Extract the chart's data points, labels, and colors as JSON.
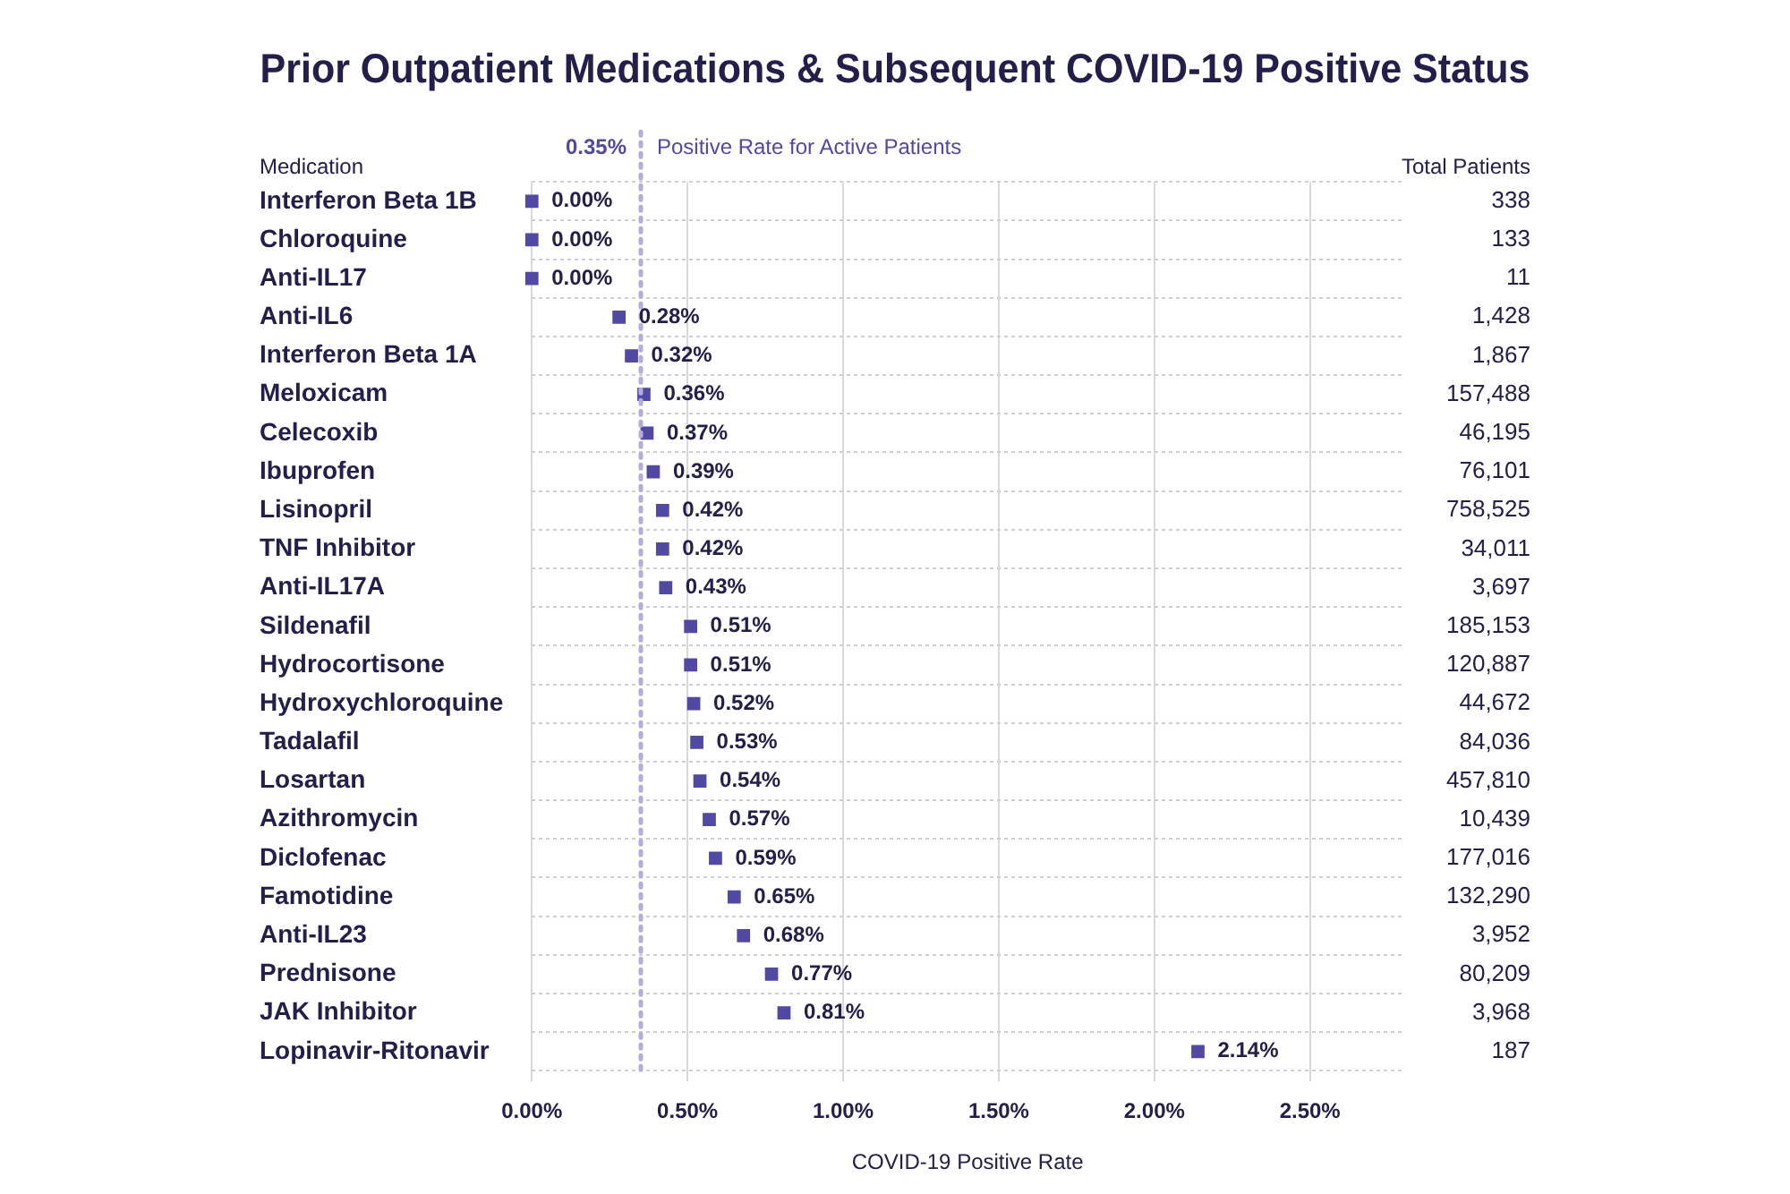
{
  "chart_data": {
    "type": "scatter",
    "orientation": "horizontal",
    "title": "Prior Outpatient Medications & Subsequent COVID-19 Positive Status",
    "ylabel": "Medication",
    "y2label": "Total Patients",
    "xlabel": "COVID-19 Positive Rate",
    "categories": [
      "Interferon Beta 1B",
      "Chloroquine",
      "Anti-IL17",
      "Anti-IL6",
      "Interferon Beta 1A",
      "Meloxicam",
      "Celecoxib",
      "Ibuprofen",
      "Lisinopril",
      "TNF Inhibitor",
      "Anti-IL17A",
      "Sildenafil",
      "Hydrocortisone",
      "Hydroxychloroquine",
      "Tadalafil",
      "Losartan",
      "Azithromycin",
      "Diclofenac",
      "Famotidine",
      "Anti-IL23",
      "Prednisone",
      "JAK Inhibitor",
      "Lopinavir-Ritonavir"
    ],
    "y2_categories": [
      "338",
      "133",
      "11",
      "1,428",
      "1,867",
      "157,488",
      "46,195",
      "76,101",
      "758,525",
      "34,011",
      "3,697",
      "185,153",
      "120,887",
      "44,672",
      "84,036",
      "457,810",
      "10,439",
      "177,016",
      "132,290",
      "3,952",
      "80,209",
      "3,968",
      "187"
    ],
    "values": [
      0,
      0,
      0,
      0.28,
      0.32,
      0.36,
      0.37,
      0.39,
      0.42,
      0.42,
      0.43,
      0.51,
      0.51,
      0.52,
      0.53,
      0.54,
      0.57,
      0.59,
      0.65,
      0.68,
      0.77,
      0.81,
      2.14
    ],
    "value_labels": [
      "0.00%",
      "0.00%",
      "0.00%",
      "0.28%",
      "0.32%",
      "0.36%",
      "0.37%",
      "0.39%",
      "0.42%",
      "0.42%",
      "0.43%",
      "0.51%",
      "0.51%",
      "0.52%",
      "0.53%",
      "0.54%",
      "0.57%",
      "0.59%",
      "0.65%",
      "0.68%",
      "0.77%",
      "0.81%",
      "2.14%"
    ],
    "color": "#5249a3",
    "marker": "square",
    "grid": true,
    "legend": false,
    "xlim": [
      0,
      2.8
    ],
    "xticks": [
      {
        "value": 0,
        "label": "0.00%"
      },
      {
        "value": 0.5,
        "label": "0.50%"
      },
      {
        "value": 1,
        "label": "1.00%"
      },
      {
        "value": 1.5,
        "label": "1.50%"
      },
      {
        "value": 2,
        "label": "2.00%"
      },
      {
        "value": 2.5,
        "label": "2.50%"
      }
    ],
    "ref_lines": [
      {
        "axis": "x",
        "value": 0.35,
        "label": "Positive Rate for Active Patients",
        "color": "#b3acdf",
        "line_style": "dotted"
      }
    ],
    "annotations": [
      {
        "text": "0.35%",
        "x": 0.35
      }
    ]
  }
}
